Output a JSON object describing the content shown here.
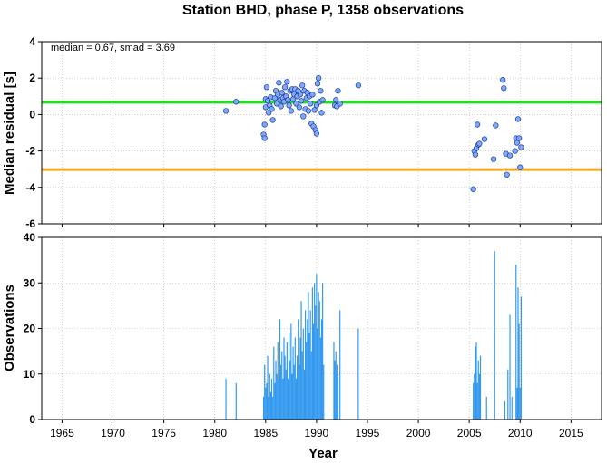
{
  "chart_data": [
    {
      "type": "scatter",
      "title": "Station BHD, phase P, 1358 observations",
      "xlabel": "",
      "ylabel": "Median residual [s]",
      "xlim": [
        1963,
        2018
      ],
      "ylim": [
        -6,
        4
      ],
      "xticks": [
        1965,
        1970,
        1975,
        1980,
        1985,
        1990,
        1995,
        2000,
        2005,
        2010,
        2015
      ],
      "yticks": [
        -6,
        -4,
        -2,
        0,
        2,
        4
      ],
      "annotation": "median = 0.67, smad = 3.69",
      "grid": true,
      "reference_lines": [
        {
          "y": 0.67,
          "color": "#22dd22"
        },
        {
          "y": -3.02,
          "color": "#f5a623"
        }
      ],
      "marker_color": "#7fa8f5",
      "points": [
        [
          1981.1,
          0.2
        ],
        [
          1982.1,
          0.7
        ],
        [
          1984.8,
          -1.1
        ],
        [
          1984.9,
          -1.3
        ],
        [
          1984.9,
          -0.55
        ],
        [
          1985.0,
          0.4
        ],
        [
          1985.0,
          0.85
        ],
        [
          1985.1,
          1.5
        ],
        [
          1985.2,
          0.75
        ],
        [
          1985.3,
          0.1
        ],
        [
          1985.4,
          0.5
        ],
        [
          1985.5,
          0.95
        ],
        [
          1985.6,
          0.3
        ],
        [
          1985.7,
          -0.3
        ],
        [
          1985.9,
          0.9
        ],
        [
          1986.0,
          1.3
        ],
        [
          1986.1,
          0.6
        ],
        [
          1986.2,
          1.1
        ],
        [
          1986.3,
          1.75
        ],
        [
          1986.4,
          0.8
        ],
        [
          1986.5,
          0.45
        ],
        [
          1986.6,
          1.2
        ],
        [
          1986.7,
          0.9
        ],
        [
          1986.8,
          0.7
        ],
        [
          1986.9,
          1.5
        ],
        [
          1987.0,
          1.0
        ],
        [
          1987.1,
          1.8
        ],
        [
          1987.2,
          0.8
        ],
        [
          1987.3,
          0.5
        ],
        [
          1987.4,
          1.3
        ],
        [
          1987.5,
          0.2
        ],
        [
          1987.6,
          1.4
        ],
        [
          1987.7,
          0.85
        ],
        [
          1987.8,
          1.1
        ],
        [
          1987.9,
          1.4
        ],
        [
          1988.0,
          0.6
        ],
        [
          1988.1,
          1.0
        ],
        [
          1988.2,
          1.3
        ],
        [
          1988.3,
          0.4
        ],
        [
          1988.4,
          1.1
        ],
        [
          1988.5,
          0.75
        ],
        [
          1988.6,
          1.6
        ],
        [
          1988.7,
          -0.1
        ],
        [
          1988.8,
          1.3
        ],
        [
          1988.9,
          0.3
        ],
        [
          1989.0,
          0.9
        ],
        [
          1989.1,
          1.2
        ],
        [
          1989.2,
          0.2
        ],
        [
          1989.3,
          1.0
        ],
        [
          1989.4,
          0.6
        ],
        [
          1989.5,
          -0.5
        ],
        [
          1989.6,
          1.1
        ],
        [
          1989.7,
          -0.65
        ],
        [
          1989.8,
          0.25
        ],
        [
          1989.9,
          -0.85
        ],
        [
          1990.0,
          -1.05
        ],
        [
          1990.0,
          0.5
        ],
        [
          1990.1,
          1.7
        ],
        [
          1990.2,
          2.0
        ],
        [
          1990.3,
          0.7
        ],
        [
          1990.4,
          1.3
        ],
        [
          1990.5,
          0.1
        ],
        [
          1990.6,
          0.8
        ],
        [
          1991.8,
          0.5
        ],
        [
          1991.9,
          0.8
        ],
        [
          1992.0,
          0.45
        ],
        [
          1992.1,
          1.3
        ],
        [
          1992.3,
          0.6
        ],
        [
          1994.1,
          1.6
        ],
        [
          2005.4,
          -4.1
        ],
        [
          2005.5,
          -2.0
        ],
        [
          2005.6,
          -2.2
        ],
        [
          2005.7,
          -1.85
        ],
        [
          2005.8,
          -0.55
        ],
        [
          2005.9,
          -1.65
        ],
        [
          2006.0,
          -1.6
        ],
        [
          2006.5,
          -1.35
        ],
        [
          2007.4,
          -2.45
        ],
        [
          2007.6,
          -0.6
        ],
        [
          2008.3,
          1.9
        ],
        [
          2008.4,
          1.45
        ],
        [
          2008.6,
          -2.15
        ],
        [
          2008.7,
          -3.3
        ],
        [
          2009.0,
          -2.25
        ],
        [
          2009.5,
          -2.0
        ],
        [
          2009.6,
          -1.3
        ],
        [
          2009.7,
          -1.55
        ],
        [
          2009.8,
          -0.25
        ],
        [
          2009.9,
          -1.3
        ],
        [
          2010.0,
          -2.9
        ],
        [
          2010.1,
          -1.8
        ]
      ]
    },
    {
      "type": "bar",
      "title": "",
      "xlabel": "Year",
      "ylabel": "Observations",
      "xlim": [
        1963,
        2018
      ],
      "ylim": [
        0,
        40
      ],
      "xticks": [
        1965,
        1970,
        1975,
        1980,
        1985,
        1990,
        1995,
        2000,
        2005,
        2010,
        2015
      ],
      "yticks": [
        0,
        10,
        20,
        30,
        40
      ],
      "grid": true,
      "bar_color": "#3399ee",
      "bars": [
        [
          1981.1,
          9
        ],
        [
          1982.1,
          8
        ],
        [
          1984.8,
          5
        ],
        [
          1984.9,
          12
        ],
        [
          1985.0,
          7
        ],
        [
          1985.1,
          8
        ],
        [
          1985.2,
          14
        ],
        [
          1985.3,
          5
        ],
        [
          1985.4,
          10
        ],
        [
          1985.5,
          6
        ],
        [
          1985.6,
          9
        ],
        [
          1985.7,
          5
        ],
        [
          1985.8,
          16
        ],
        [
          1985.9,
          8
        ],
        [
          1986.0,
          13
        ],
        [
          1986.1,
          10
        ],
        [
          1986.2,
          17
        ],
        [
          1986.3,
          9
        ],
        [
          1986.4,
          22
        ],
        [
          1986.5,
          12
        ],
        [
          1986.6,
          15
        ],
        [
          1986.7,
          9
        ],
        [
          1986.8,
          18
        ],
        [
          1986.9,
          14
        ],
        [
          1987.0,
          11
        ],
        [
          1987.1,
          17
        ],
        [
          1987.2,
          9
        ],
        [
          1987.3,
          19
        ],
        [
          1987.4,
          13
        ],
        [
          1987.5,
          21
        ],
        [
          1987.6,
          10
        ],
        [
          1987.7,
          16
        ],
        [
          1987.8,
          12
        ],
        [
          1987.9,
          18
        ],
        [
          1988.0,
          9
        ],
        [
          1988.1,
          14
        ],
        [
          1988.2,
          22
        ],
        [
          1988.3,
          12
        ],
        [
          1988.4,
          18
        ],
        [
          1988.5,
          26
        ],
        [
          1988.6,
          15
        ],
        [
          1988.7,
          20
        ],
        [
          1988.8,
          11
        ],
        [
          1988.9,
          24
        ],
        [
          1989.0,
          17
        ],
        [
          1989.1,
          22
        ],
        [
          1989.2,
          28
        ],
        [
          1989.3,
          19
        ],
        [
          1989.4,
          24
        ],
        [
          1989.5,
          15
        ],
        [
          1989.6,
          29
        ],
        [
          1989.7,
          21
        ],
        [
          1989.8,
          30
        ],
        [
          1989.9,
          25
        ],
        [
          1990.0,
          32
        ],
        [
          1990.1,
          20
        ],
        [
          1990.2,
          28
        ],
        [
          1990.3,
          26
        ],
        [
          1990.4,
          18
        ],
        [
          1990.5,
          22
        ],
        [
          1990.6,
          30
        ],
        [
          1990.7,
          12
        ],
        [
          1991.7,
          17
        ],
        [
          1991.8,
          13
        ],
        [
          1991.9,
          15
        ],
        [
          1992.0,
          12
        ],
        [
          1992.1,
          10
        ],
        [
          1992.3,
          24
        ],
        [
          1994.1,
          20
        ],
        [
          2005.4,
          8
        ],
        [
          2005.5,
          10
        ],
        [
          2005.6,
          16
        ],
        [
          2005.7,
          17
        ],
        [
          2005.8,
          8
        ],
        [
          2005.9,
          13
        ],
        [
          2006.0,
          10
        ],
        [
          2006.1,
          14
        ],
        [
          2006.7,
          5
        ],
        [
          2007.5,
          37
        ],
        [
          2008.5,
          4
        ],
        [
          2008.8,
          11
        ],
        [
          2009.0,
          23
        ],
        [
          2009.2,
          5
        ],
        [
          2009.6,
          34
        ],
        [
          2009.7,
          7
        ],
        [
          2009.8,
          29
        ],
        [
          2009.9,
          21
        ],
        [
          2010.0,
          7
        ],
        [
          2010.1,
          27
        ]
      ]
    }
  ]
}
